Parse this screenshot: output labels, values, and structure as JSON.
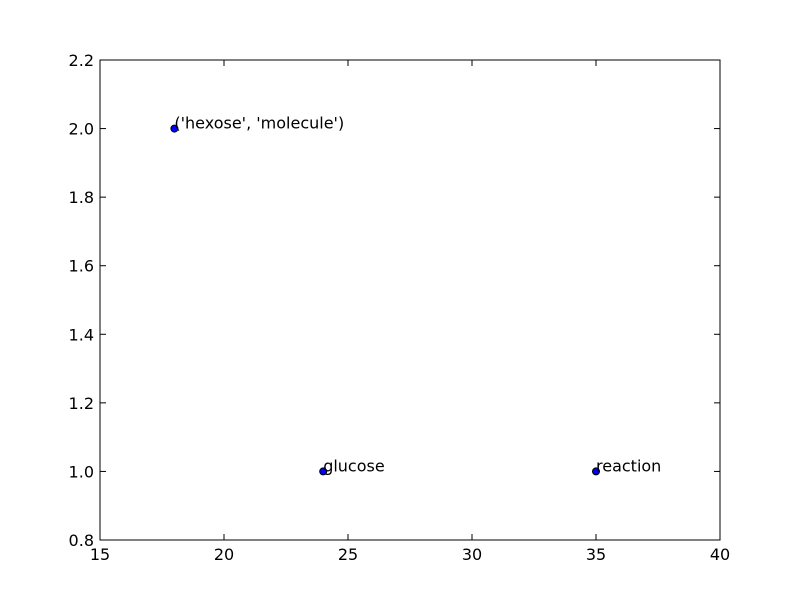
{
  "chart_data": {
    "type": "scatter",
    "title": "",
    "xlabel": "",
    "ylabel": "",
    "xlim": [
      15,
      40
    ],
    "ylim": [
      0.8,
      2.2
    ],
    "xticks": [
      "15",
      "20",
      "25",
      "30",
      "35",
      "40"
    ],
    "yticks": [
      "0.8",
      "1.0",
      "1.2",
      "1.4",
      "1.6",
      "1.8",
      "2.0",
      "2.2"
    ],
    "grid": false,
    "legend": "none",
    "marker_color": "#0000ff",
    "points": [
      {
        "x": 18,
        "y": 2.0,
        "label": "('hexose', 'molecule')"
      },
      {
        "x": 24,
        "y": 1.0,
        "label": "glucose"
      },
      {
        "x": 35,
        "y": 1.0,
        "label": "reaction"
      }
    ]
  }
}
